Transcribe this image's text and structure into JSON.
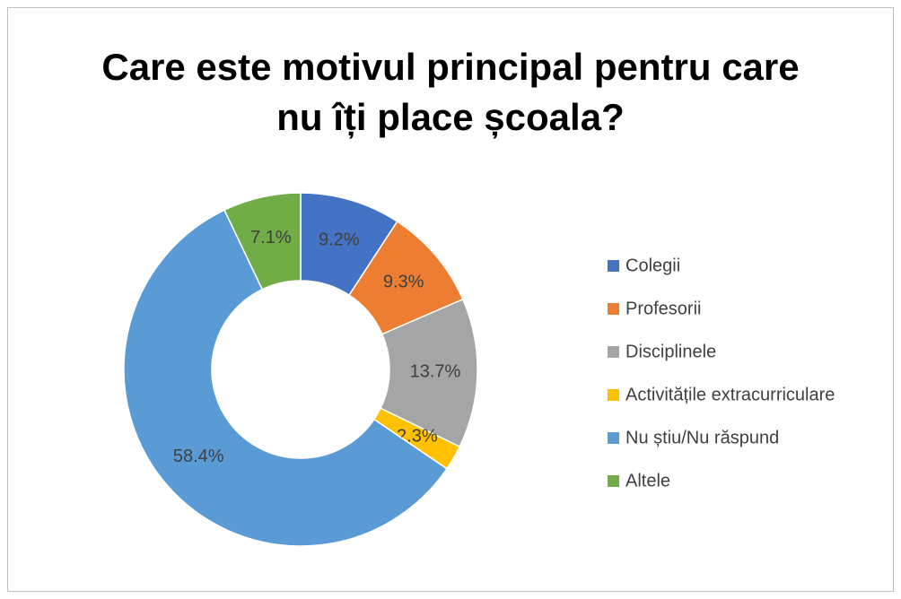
{
  "chart_data": {
    "type": "donut",
    "title": "Care este motivul principal pentru care nu îți place școala?",
    "categories": [
      "Colegii",
      "Profesorii",
      "Disciplinele",
      "Activitățile extracurriculare",
      "Nu știu/Nu răspund",
      "Altele"
    ],
    "values": [
      9.2,
      9.3,
      13.7,
      2.3,
      58.4,
      7.1
    ],
    "value_labels": [
      "9.2%",
      "9.3%",
      "13.7%",
      "2.3%",
      "58.4%",
      "7.1%"
    ],
    "colors": [
      "#4472c4",
      "#ed7d31",
      "#a5a5a5",
      "#ffc000",
      "#5b9bd5",
      "#70ad47"
    ],
    "legend": "right"
  }
}
